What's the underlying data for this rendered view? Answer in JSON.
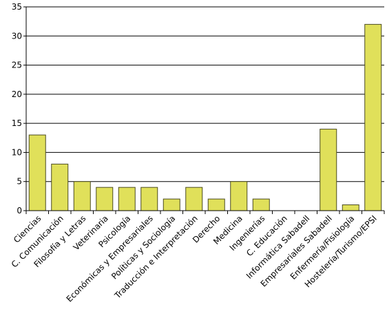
{
  "chart_data": {
    "type": "bar",
    "title": "",
    "xlabel": "",
    "ylabel": "",
    "ylim": [
      0,
      35
    ],
    "yticks": [
      0,
      5,
      10,
      15,
      20,
      25,
      30,
      35
    ],
    "grid": true,
    "legend": "none",
    "bar_color": "#e0e05a",
    "bar_edge_color": "#4a4a20",
    "categories": [
      "Ciencias",
      "C. Comunicación",
      "Filosofía y Letras",
      "Veterinaria",
      "Psicología",
      "Económicas y Empresariales",
      "Políticas y Sociología",
      "Traducción e Interpretación",
      "Derecho",
      "Medicina",
      "Ingenierías",
      "C. Educación",
      "Informática Sabadell",
      "Empresariales Sabadell",
      "Enfermería/Fisiología",
      "Hostelería/Turismo/EPSI"
    ],
    "values": [
      13,
      8,
      5,
      4,
      4,
      4,
      2,
      4,
      2,
      5,
      2,
      0,
      0,
      14,
      1,
      32
    ]
  }
}
